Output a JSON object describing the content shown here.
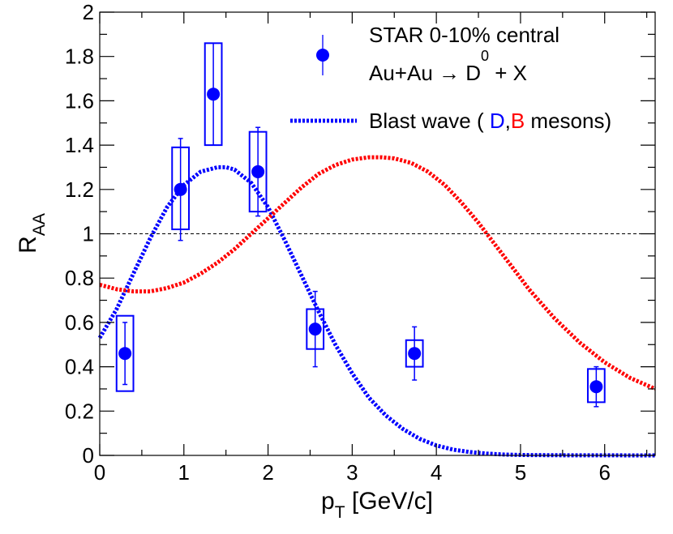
{
  "chart_data": {
    "type": "scatter",
    "xlabel_main": "p",
    "xlabel_sub": "T",
    "xlabel_tail": " [GeV/c]",
    "ylabel_main": "R",
    "ylabel_sub": "AA",
    "xlim": [
      0,
      6.6
    ],
    "ylim": [
      0,
      2
    ],
    "x_ticks": [
      0,
      1,
      2,
      3,
      4,
      5,
      6
    ],
    "y_ticks": [
      0,
      0.2,
      0.4,
      0.6,
      0.8,
      1,
      1.2,
      1.4,
      1.6,
      1.8,
      2
    ],
    "x_tick_labels": [
      "0",
      "1",
      "2",
      "3",
      "4",
      "5",
      "6"
    ],
    "y_tick_labels": [
      "0",
      "0.2",
      "0.4",
      "0.6",
      "0.8",
      "1",
      "1.2",
      "1.4",
      "1.6",
      "1.8",
      "2"
    ],
    "reference_line_y": 1,
    "data_series": {
      "name": "STAR 0-10% central",
      "color": "#0000ff",
      "points": [
        {
          "x": 0.3,
          "y": 0.46,
          "stat": 0.14,
          "sys_half_width": 0.1,
          "sys_low": 0.29,
          "sys_high": 0.63
        },
        {
          "x": 0.96,
          "y": 1.2,
          "stat": 0.23,
          "sys_half_width": 0.1,
          "sys_low": 1.02,
          "sys_high": 1.39
        },
        {
          "x": 1.35,
          "y": 1.63,
          "stat": 0.23,
          "sys_half_width": 0.1,
          "sys_low": 1.4,
          "sys_high": 1.86
        },
        {
          "x": 1.88,
          "y": 1.28,
          "stat": 0.2,
          "sys_half_width": 0.1,
          "sys_low": 1.1,
          "sys_high": 1.46
        },
        {
          "x": 2.56,
          "y": 0.57,
          "stat": 0.17,
          "sys_half_width": 0.1,
          "sys_low": 0.48,
          "sys_high": 0.66
        },
        {
          "x": 3.74,
          "y": 0.46,
          "stat": 0.12,
          "sys_half_width": 0.1,
          "sys_low": 0.4,
          "sys_high": 0.52
        },
        {
          "x": 5.9,
          "y": 0.31,
          "stat": 0.09,
          "sys_half_width": 0.1,
          "sys_low": 0.24,
          "sys_high": 0.39
        }
      ]
    },
    "curves": [
      {
        "name": "D",
        "color": "#0000ff",
        "x": [
          0,
          0.2,
          0.4,
          0.6,
          0.8,
          1.0,
          1.2,
          1.4,
          1.5,
          1.6,
          1.8,
          2.0,
          2.2,
          2.4,
          2.6,
          2.8,
          3.0,
          3.2,
          3.4,
          3.6,
          3.8,
          4.0,
          4.2,
          4.4,
          4.6,
          4.8,
          5.0,
          5.3,
          5.6,
          6.0,
          6.6
        ],
        "y": [
          0.53,
          0.66,
          0.82,
          0.98,
          1.12,
          1.22,
          1.28,
          1.3,
          1.3,
          1.29,
          1.23,
          1.12,
          0.97,
          0.81,
          0.65,
          0.5,
          0.37,
          0.26,
          0.18,
          0.12,
          0.075,
          0.045,
          0.026,
          0.015,
          0.008,
          0.004,
          0.002,
          0.001,
          0.0005,
          0.0002,
          0.0
        ]
      },
      {
        "name": "B",
        "color": "#ff0000",
        "x": [
          0,
          0.2,
          0.4,
          0.6,
          0.8,
          1.0,
          1.2,
          1.4,
          1.6,
          1.8,
          2.0,
          2.2,
          2.4,
          2.6,
          2.8,
          3.0,
          3.2,
          3.35,
          3.5,
          3.7,
          3.9,
          4.1,
          4.3,
          4.5,
          4.7,
          4.9,
          5.1,
          5.4,
          5.7,
          6.0,
          6.3,
          6.6
        ],
        "y": [
          0.77,
          0.75,
          0.74,
          0.74,
          0.755,
          0.78,
          0.82,
          0.87,
          0.93,
          1.0,
          1.07,
          1.14,
          1.21,
          1.27,
          1.31,
          1.335,
          1.345,
          1.345,
          1.34,
          1.32,
          1.28,
          1.22,
          1.14,
          1.05,
          0.95,
          0.85,
          0.75,
          0.62,
          0.51,
          0.42,
          0.35,
          0.3
        ]
      }
    ],
    "legend": {
      "position": "top-right",
      "data_label": "STAR 0-10% central",
      "reaction_prefix": "Au+Au  ",
      "reaction_arrow": "→",
      "reaction_particle": " D",
      "reaction_superscript": "0",
      "reaction_suffix": " + X",
      "curve_label_prefix": "Blast wave ( ",
      "curve_label_d": "D",
      "curve_label_comma": ",",
      "curve_label_b": "B",
      "curve_label_suffix": " mesons)",
      "d_color": "#0000ff",
      "b_color": "#ff0000"
    }
  }
}
